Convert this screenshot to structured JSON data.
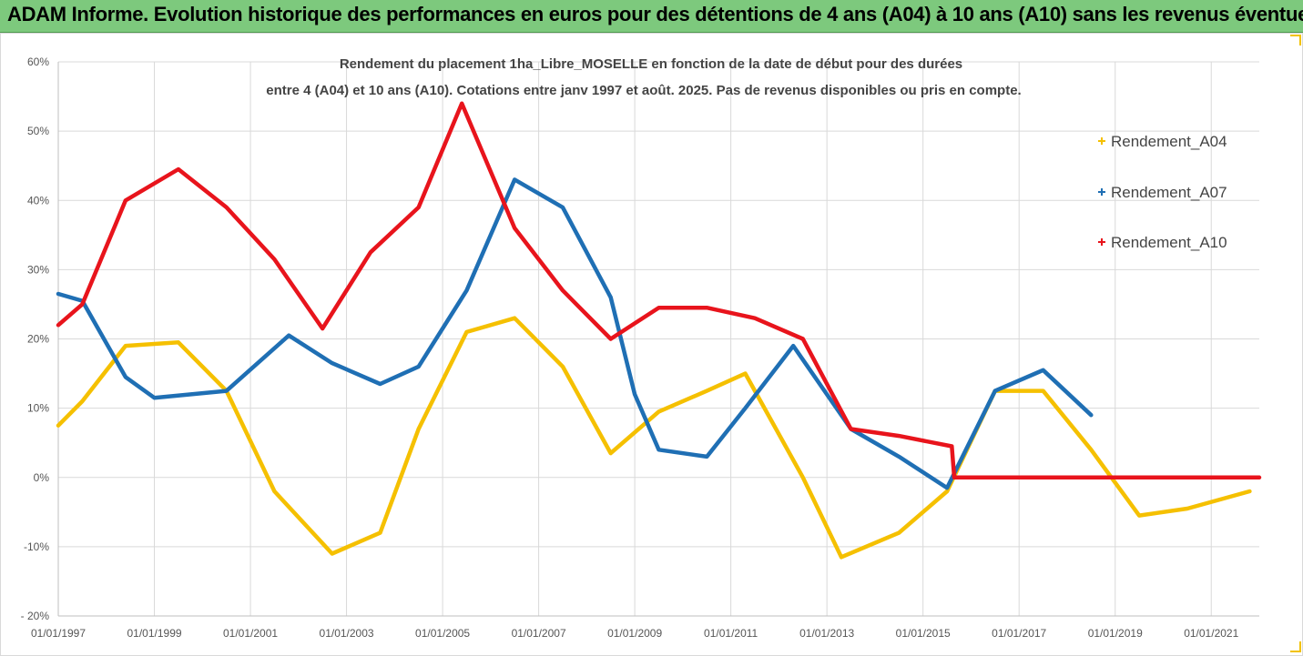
{
  "header": {
    "title": "ADAM Informe. Evolution historique des performances en euros pour des détentions de 4 ans (A04) à 10 ans (A10) sans les revenus éventuels"
  },
  "chart_data": {
    "type": "line",
    "subtitle_line1": "Rendement du placement 1ha_Libre_MOSELLE en fonction de la date de début pour des durées",
    "subtitle_line2": "entre 4 (A04) et 10 ans (A10). Cotations entre janv 1997 et août. 2025. Pas de revenus disponibles ou pris en compte.",
    "ylim": [
      -20,
      60
    ],
    "yticks": [
      -20,
      -10,
      0,
      10,
      20,
      30,
      40,
      50,
      60
    ],
    "ytick_labels": [
      "- 20%",
      "-10%",
      "0%",
      "10%",
      "20%",
      "30%",
      "40%",
      "50%",
      "60%"
    ],
    "xlim": [
      1997.0,
      2022.0
    ],
    "xticks": [
      "01/01/1997",
      "01/01/1999",
      "01/01/2001",
      "01/01/2003",
      "01/01/2005",
      "01/01/2007",
      "01/01/2009",
      "01/01/2011",
      "01/01/2013",
      "01/01/2015",
      "01/01/2017",
      "01/01/2019",
      "01/01/2021"
    ],
    "grid": true,
    "legend_position": "top-right",
    "series": [
      {
        "name": "Rendement_A04",
        "color": "#f5c000",
        "x": [
          1997.0,
          1997.5,
          1998.4,
          1999.5,
          2000.5,
          2001.5,
          2002.7,
          2003.7,
          2004.5,
          2005.5,
          2006.5,
          2007.5,
          2008.5,
          2009.5,
          2010.5,
          2011.3,
          2012.5,
          2013.3,
          2014.5,
          2015.5,
          2016.5,
          2017.5,
          2018.5,
          2019.5,
          2020.5,
          2021.8
        ],
        "y": [
          7.5,
          11,
          19,
          19.5,
          12.5,
          -2,
          -11,
          -8,
          7,
          21,
          23,
          16,
          3.5,
          9.5,
          12.5,
          15,
          0,
          -11.5,
          -8,
          -2,
          12.5,
          12.5,
          4,
          -5.5,
          -4.5,
          -2
        ]
      },
      {
        "name": "Rendement_A07",
        "color": "#1f6fb4",
        "x": [
          1997.0,
          1997.5,
          1998.4,
          1999.0,
          2000.5,
          2001.8,
          2002.7,
          2003.7,
          2004.5,
          2005.5,
          2006.5,
          2007.5,
          2008.5,
          2009.0,
          2009.5,
          2010.5,
          2011.3,
          2012.3,
          2013.5,
          2014.5,
          2015.5,
          2016.5,
          2017.5,
          2018.5
        ],
        "y": [
          26.5,
          25.5,
          14.5,
          11.5,
          12.5,
          20.5,
          16.5,
          13.5,
          16,
          27,
          43,
          39,
          26,
          12,
          4,
          3,
          10,
          19,
          7,
          3,
          -1.5,
          12.5,
          15.5,
          9
        ]
      },
      {
        "name": "Rendement_A10",
        "color": "#e8141c",
        "x": [
          1997.0,
          1997.5,
          1998.4,
          1999.5,
          2000.5,
          2001.5,
          2002.5,
          2003.5,
          2004.5,
          2005.4,
          2006.5,
          2007.5,
          2008.5,
          2009.5,
          2010.5,
          2011.5,
          2012.5,
          2013.5,
          2014.5,
          2015.6,
          2015.65,
          2016.5,
          2017.5,
          2018.5,
          2019.5,
          2020.5,
          2021.5,
          2022.0
        ],
        "y": [
          22,
          25,
          40,
          44.5,
          39,
          31.5,
          21.5,
          32.5,
          39,
          54,
          36,
          27,
          20,
          24.5,
          24.5,
          23,
          20,
          7,
          6,
          4.5,
          0,
          0,
          0,
          0,
          0,
          0,
          0,
          0
        ]
      }
    ]
  }
}
